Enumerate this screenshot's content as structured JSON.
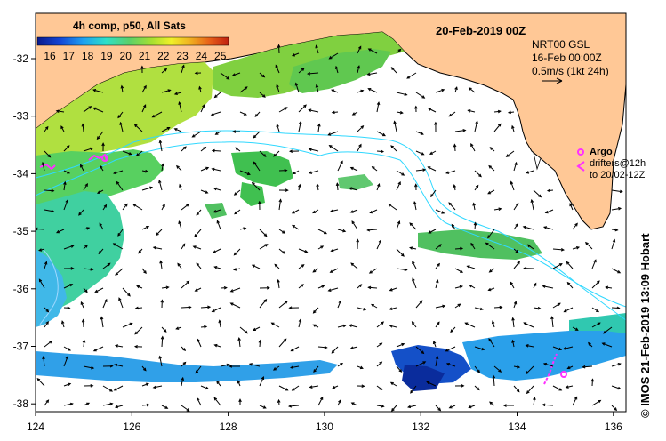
{
  "colorbar": {
    "title": "4h comp, p50, All Sats",
    "ticks": [
      "16",
      "17",
      "18",
      "19",
      "20",
      "21",
      "22",
      "23",
      "24",
      "25"
    ],
    "colors": [
      "#0a1a8c",
      "#1346d6",
      "#1ea0f0",
      "#2ee0c8",
      "#5ad06a",
      "#a8e030",
      "#f0f028",
      "#f0b020",
      "#e86018",
      "#c02010"
    ]
  },
  "header": {
    "date": "20-Feb-2019 00Z",
    "product": "NRT00 GSL",
    "ref_time": "16-Feb 00:00Z",
    "scale": "0.5m/s (1kt 24h)"
  },
  "legend": {
    "argo": "Argo",
    "drifters_1": "drifters@12h",
    "drifters_2": "to 20/02-12Z"
  },
  "credit": "© IMOS 21-Feb-2019 13:09 Hobart",
  "axes": {
    "x_ticks": [
      "124",
      "126",
      "128",
      "130",
      "132",
      "134",
      "136"
    ],
    "y_ticks": [
      "-32",
      "-33",
      "-34",
      "-35",
      "-36",
      "-37",
      "-38"
    ]
  },
  "colors": {
    "land": "#ffc896",
    "ocean": "#ffffff",
    "track": "#30d8ff",
    "argo": "#ff30ff"
  }
}
